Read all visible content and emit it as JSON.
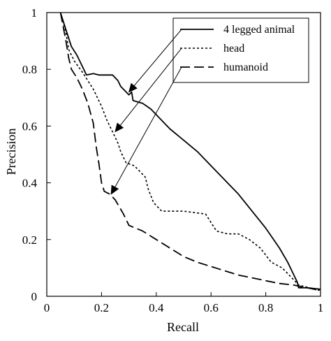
{
  "chart_data": {
    "type": "line",
    "title": "",
    "xlabel": "Recall",
    "ylabel": "Precision",
    "xlim": [
      0,
      1
    ],
    "ylim": [
      0,
      1
    ],
    "xticks": [
      "0",
      "0.2",
      "0.4",
      "0.6",
      "0.8",
      "1"
    ],
    "yticks": [
      "0",
      "0.2",
      "0.4",
      "0.6",
      "0.8",
      "1"
    ],
    "grid": false,
    "legend": "top-right",
    "series": [
      {
        "name": "4 legged animal",
        "style": "solid",
        "color": "#000000",
        "points": [
          [
            0.05,
            1.0
          ],
          [
            0.07,
            0.94
          ],
          [
            0.09,
            0.88
          ],
          [
            0.11,
            0.85
          ],
          [
            0.13,
            0.81
          ],
          [
            0.145,
            0.78
          ],
          [
            0.17,
            0.785
          ],
          [
            0.19,
            0.78
          ],
          [
            0.24,
            0.78
          ],
          [
            0.26,
            0.76
          ],
          [
            0.27,
            0.74
          ],
          [
            0.3,
            0.71
          ],
          [
            0.31,
            0.72
          ],
          [
            0.315,
            0.69
          ],
          [
            0.35,
            0.68
          ],
          [
            0.38,
            0.66
          ],
          [
            0.41,
            0.63
          ],
          [
            0.45,
            0.59
          ],
          [
            0.5,
            0.55
          ],
          [
            0.55,
            0.51
          ],
          [
            0.6,
            0.46
          ],
          [
            0.65,
            0.41
          ],
          [
            0.7,
            0.36
          ],
          [
            0.75,
            0.3
          ],
          [
            0.8,
            0.24
          ],
          [
            0.85,
            0.17
          ],
          [
            0.88,
            0.12
          ],
          [
            0.9,
            0.08
          ],
          [
            0.915,
            0.05
          ],
          [
            0.92,
            0.03
          ],
          [
            0.95,
            0.03
          ],
          [
            1.0,
            0.025
          ]
        ]
      },
      {
        "name": "head",
        "style": "dotted",
        "color": "#000000",
        "points": [
          [
            0.05,
            1.0
          ],
          [
            0.07,
            0.93
          ],
          [
            0.08,
            0.87
          ],
          [
            0.1,
            0.83
          ],
          [
            0.13,
            0.79
          ],
          [
            0.15,
            0.76
          ],
          [
            0.17,
            0.73
          ],
          [
            0.2,
            0.67
          ],
          [
            0.22,
            0.62
          ],
          [
            0.24,
            0.58
          ],
          [
            0.26,
            0.54
          ],
          [
            0.27,
            0.51
          ],
          [
            0.29,
            0.47
          ],
          [
            0.32,
            0.46
          ],
          [
            0.34,
            0.44
          ],
          [
            0.36,
            0.42
          ],
          [
            0.37,
            0.38
          ],
          [
            0.39,
            0.33
          ],
          [
            0.42,
            0.3
          ],
          [
            0.5,
            0.3
          ],
          [
            0.58,
            0.29
          ],
          [
            0.62,
            0.23
          ],
          [
            0.66,
            0.22
          ],
          [
            0.7,
            0.22
          ],
          [
            0.74,
            0.2
          ],
          [
            0.78,
            0.17
          ],
          [
            0.82,
            0.12
          ],
          [
            0.86,
            0.1
          ],
          [
            0.88,
            0.08
          ],
          [
            0.9,
            0.06
          ],
          [
            0.92,
            0.04
          ],
          [
            1.0,
            0.02
          ]
        ]
      },
      {
        "name": "humanoid",
        "style": "dashed",
        "color": "#000000",
        "points": [
          [
            0.05,
            1.0
          ],
          [
            0.06,
            0.95
          ],
          [
            0.07,
            0.9
          ],
          [
            0.08,
            0.84
          ],
          [
            0.09,
            0.8
          ],
          [
            0.11,
            0.77
          ],
          [
            0.13,
            0.73
          ],
          [
            0.15,
            0.68
          ],
          [
            0.17,
            0.61
          ],
          [
            0.18,
            0.53
          ],
          [
            0.19,
            0.47
          ],
          [
            0.2,
            0.4
          ],
          [
            0.21,
            0.37
          ],
          [
            0.23,
            0.36
          ],
          [
            0.25,
            0.34
          ],
          [
            0.28,
            0.29
          ],
          [
            0.3,
            0.25
          ],
          [
            0.35,
            0.23
          ],
          [
            0.4,
            0.2
          ],
          [
            0.45,
            0.17
          ],
          [
            0.5,
            0.14
          ],
          [
            0.55,
            0.12
          ],
          [
            0.6,
            0.105
          ],
          [
            0.65,
            0.09
          ],
          [
            0.7,
            0.075
          ],
          [
            0.75,
            0.065
          ],
          [
            0.8,
            0.055
          ],
          [
            0.85,
            0.045
          ],
          [
            0.9,
            0.04
          ],
          [
            0.95,
            0.03
          ],
          [
            1.0,
            0.02
          ]
        ]
      }
    ],
    "annotations": [
      {
        "series": "4 legged animal",
        "target": [
          0.3,
          0.72
        ]
      },
      {
        "series": "head",
        "target": [
          0.25,
          0.58
        ]
      },
      {
        "series": "humanoid",
        "target": [
          0.235,
          0.36
        ]
      }
    ]
  }
}
